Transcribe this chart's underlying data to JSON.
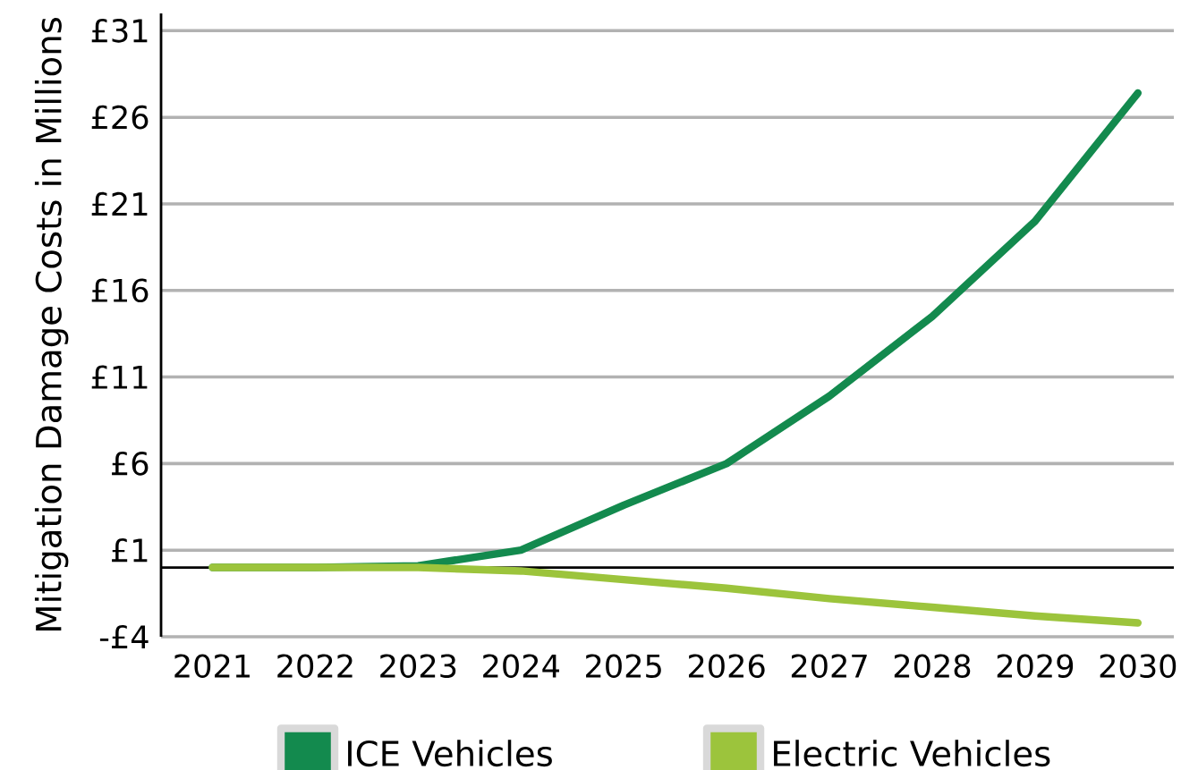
{
  "chart_data": {
    "type": "line",
    "ylabel": "Mitigation Damage Costs in Millions",
    "categories": [
      "2021",
      "2022",
      "2023",
      "2024",
      "2025",
      "2026",
      "2027",
      "2028",
      "2029",
      "2030"
    ],
    "series": [
      {
        "name": "ICE Vehicles",
        "color": "#138a4e",
        "values": [
          0,
          0,
          0.1,
          1,
          3.6,
          6,
          9.9,
          14.5,
          20,
          27.4
        ]
      },
      {
        "name": "Electric Vehicles",
        "color": "#9cc43c",
        "values": [
          0,
          0,
          0,
          -0.2,
          -0.7,
          -1.2,
          -1.8,
          -2.3,
          -2.8,
          -3.2
        ]
      }
    ],
    "ylim": [
      -4,
      32
    ],
    "yticks": [
      {
        "value": -4,
        "label": "-£4"
      },
      {
        "value": 1,
        "label": "£1"
      },
      {
        "value": 6,
        "label": "£6"
      },
      {
        "value": 11,
        "label": "£11"
      },
      {
        "value": 16,
        "label": "£16"
      },
      {
        "value": 21,
        "label": "£21"
      },
      {
        "value": 26,
        "label": "£26"
      },
      {
        "value": 31,
        "label": "£31"
      }
    ],
    "grid": "y",
    "legend": "bottom",
    "marker": "none",
    "line_style": "solid"
  }
}
